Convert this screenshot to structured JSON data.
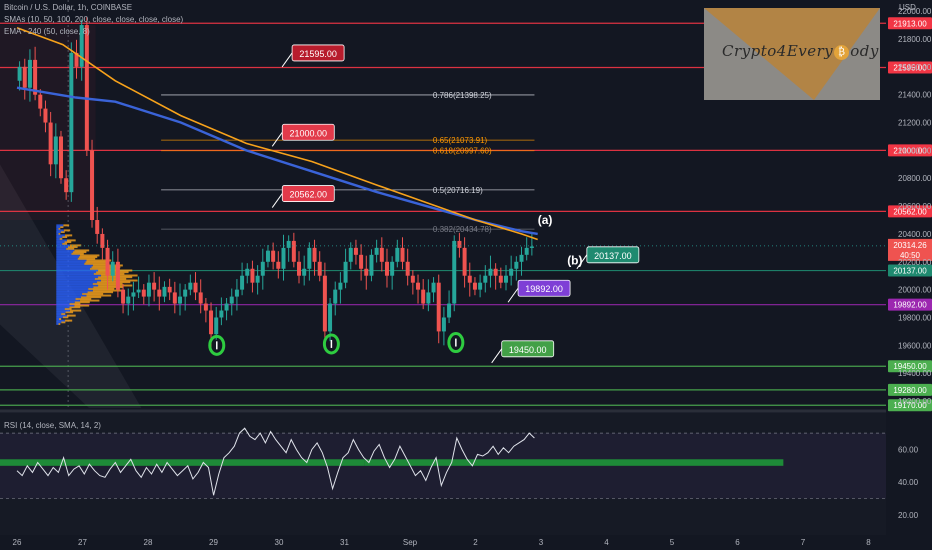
{
  "header": {
    "title": "Bitcoin / U.S. Dollar, 1h, COINBASE",
    "sma_legend": "SMAs (10, 50, 100, 200, close, close, close, close)",
    "ema_legend": "EMA - 240 (50, close, 8)",
    "currency": "USD",
    "rsi_legend": "RSI (14, close, SMA, 14, 2)"
  },
  "logo": {
    "text_a": "Crypto4Every",
    "coin": "₿",
    "text_b": "ody"
  },
  "colors": {
    "background": "#131722",
    "bull": "#26a69a",
    "bear": "#ef5350",
    "sma": "#3a63d8",
    "ema": "#f7a21b",
    "level_red": "#f23645",
    "level_green": "#4caf50",
    "level_purple": "#9c27b0",
    "fib": "#ff9800"
  },
  "chart_data": {
    "type": "candlestick",
    "x_ticks": [
      "26",
      "27",
      "28",
      "29",
      "30",
      "31",
      "Sep",
      "2",
      "3",
      "4",
      "5",
      "6",
      "7",
      "8"
    ],
    "y_ticks": [
      22000,
      21800,
      21600,
      21400,
      21200,
      21000,
      20800,
      20600,
      20400,
      20200,
      20000,
      19800,
      19600,
      19400,
      19200
    ],
    "ylim": [
      19150,
      22080
    ],
    "current_price": "20314.26",
    "countdown": "40:50",
    "price_path": [
      21500,
      21600,
      21450,
      21650,
      21400,
      21300,
      21200,
      20900,
      21100,
      20800,
      20700,
      21700,
      21600,
      21900,
      21000,
      20500,
      20400,
      20300,
      20100,
      20200,
      20000,
      19900,
      19950,
      19980,
      20000,
      19950,
      20050,
      20000,
      19950,
      20020,
      19980,
      19900,
      19950,
      20000,
      20050,
      19980,
      19900,
      19850,
      19680,
      19800,
      19850,
      19900,
      19950,
      20000,
      20100,
      20150,
      20050,
      20100,
      20200,
      20280,
      20200,
      20150,
      20300,
      20350,
      20200,
      20100,
      20150,
      20300,
      20200,
      20100,
      19700,
      19900,
      20000,
      20050,
      20200,
      20300,
      20250,
      20150,
      20100,
      20250,
      20300,
      20200,
      20100,
      20200,
      20300,
      20200,
      20100,
      20050,
      20000,
      19900,
      19980,
      20050,
      19700,
      19800,
      19900,
      20350,
      20300,
      20100,
      20050,
      20000,
      20050,
      20100,
      20150,
      20100,
      20050,
      20100,
      20150,
      20200,
      20250,
      20300,
      20310
    ],
    "sma_line": [
      [
        26,
        21450
      ],
      [
        26.9,
        21380
      ],
      [
        27.5,
        21350
      ],
      [
        28.5,
        21200
      ],
      [
        29.5,
        21000
      ],
      [
        30.5,
        20850
      ],
      [
        31.5,
        20700
      ],
      [
        32.1,
        20620
      ],
      [
        33,
        20500
      ],
      [
        33.7,
        20420
      ],
      [
        33.95,
        20400
      ]
    ],
    "ema_line": [
      [
        26,
        21880
      ],
      [
        26.7,
        21760
      ],
      [
        27.5,
        21500
      ],
      [
        28.5,
        21250
      ],
      [
        29.5,
        21050
      ],
      [
        30.5,
        20920
      ],
      [
        31.5,
        20750
      ],
      [
        32.1,
        20650
      ],
      [
        33,
        20500
      ],
      [
        33.7,
        20400
      ],
      [
        33.95,
        20360
      ]
    ],
    "levels": [
      {
        "label": "21913.00",
        "price": 21913,
        "color": "#f23645"
      },
      {
        "label": "21595.00",
        "price": 21595,
        "color": "#f23645"
      },
      {
        "label": "21000.00",
        "price": 21000,
        "color": "#f23645"
      },
      {
        "label": "20562.00",
        "price": 20562,
        "color": "#f23645"
      },
      {
        "label": "20137.00",
        "price": 20137,
        "color": "#1f8a70"
      },
      {
        "label": "19892.00",
        "price": 19892,
        "color": "#9c27b0"
      },
      {
        "label": "19450.00",
        "price": 19450,
        "color": "#4caf50"
      },
      {
        "label": "19280.00",
        "price": 19280,
        "color": "#4caf50"
      },
      {
        "label": "19170.00",
        "price": 19170,
        "color": "#4caf50"
      }
    ],
    "fib_levels": [
      {
        "label": "0.786(21398.25)",
        "price": 21398.25,
        "color": "#d1d4dc"
      },
      {
        "label": "0.65(21073.91)",
        "price": 21073.91,
        "color": "#ff9800"
      },
      {
        "label": "0.618(20997.60)",
        "price": 20997.6,
        "color": "#ff9800"
      },
      {
        "label": "0.5(20716.19)",
        "price": 20716.19,
        "color": "#d1d4dc"
      },
      {
        "label": "0.382(20434.78)",
        "price": 20434.78,
        "color": "#787b86"
      }
    ],
    "callouts": [
      {
        "label": "21595.00",
        "day": 30.2,
        "price": 21700,
        "color": "#b71c2c"
      },
      {
        "label": "21000.00",
        "day": 30.05,
        "price": 21130,
        "color": "#e23a4a"
      },
      {
        "label": "20562.00",
        "day": 30.05,
        "price": 20690,
        "color": "#e23a4a"
      },
      {
        "label": "20137.00",
        "day": 34.7,
        "price": 20250,
        "color": "#1f8a70"
      },
      {
        "label": "19892.00",
        "day": 33.65,
        "price": 20010,
        "color": "#7e3fd6"
      },
      {
        "label": "19450.00",
        "day": 33.4,
        "price": 19575,
        "color": "#43a047"
      }
    ],
    "annotations": [
      {
        "label": "(a)",
        "day": 33.95,
        "price": 20470
      },
      {
        "label": "(b)",
        "day": 34.4,
        "price": 20180
      }
    ],
    "bottom_markers": [
      {
        "day": 29.05,
        "price": 19600
      },
      {
        "day": 30.8,
        "price": 19610
      },
      {
        "day": 32.7,
        "price": 19620
      }
    ],
    "rsi": {
      "yticks": [
        60,
        40,
        20
      ],
      "ylim": [
        12,
        78
      ],
      "band": [
        50,
        54
      ],
      "values": [
        47,
        44,
        50,
        46,
        52,
        48,
        44,
        49,
        46,
        55,
        44,
        48,
        50,
        45,
        51,
        47,
        44,
        43,
        48,
        52,
        46,
        50,
        54,
        47,
        43,
        49,
        45,
        51,
        46,
        52,
        48,
        44,
        47,
        50,
        42,
        46,
        52,
        49,
        32,
        45,
        55,
        58,
        62,
        70,
        73,
        68,
        66,
        70,
        64,
        71,
        66,
        62,
        58,
        66,
        60,
        55,
        52,
        60,
        64,
        58,
        49,
        36,
        46,
        55,
        58,
        66,
        60,
        55,
        52,
        59,
        63,
        55,
        49,
        54,
        62,
        56,
        50,
        44,
        47,
        41,
        49,
        55,
        38,
        46,
        52,
        67,
        60,
        54,
        50,
        57,
        56,
        58,
        62,
        57,
        61,
        58,
        62,
        64,
        66,
        70,
        67
      ]
    }
  }
}
